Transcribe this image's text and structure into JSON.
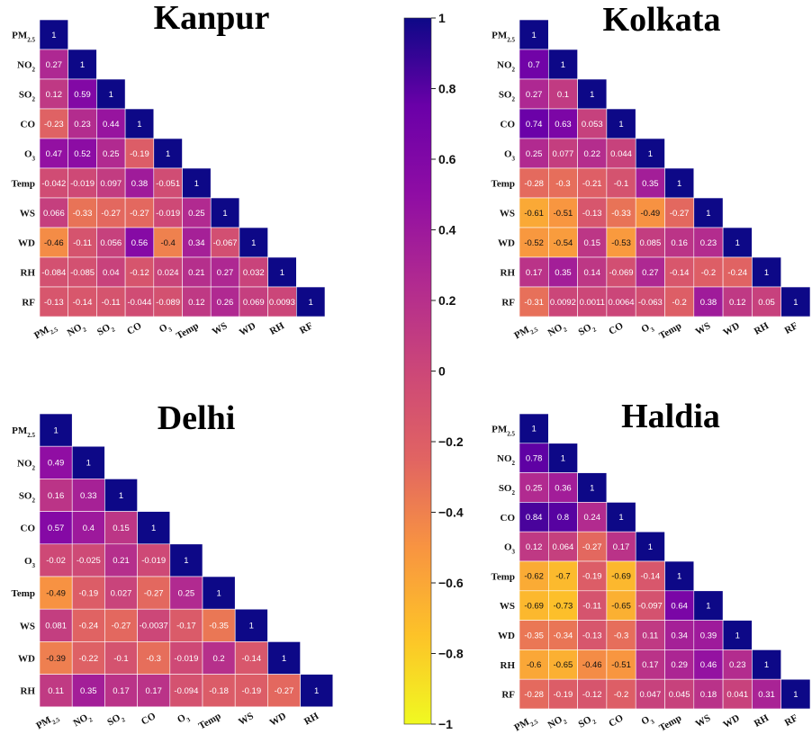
{
  "chart_data": {
    "colorbar": {
      "colormap": "plasma",
      "range": [
        -1,
        1
      ],
      "ticks": [
        "1",
        "0.8",
        "0.6",
        "0.4",
        "0.2",
        "0",
        "−0.2",
        "−0.4",
        "−0.6",
        "−0.8",
        "−1"
      ]
    },
    "panels": [
      {
        "type": "heatmap",
        "title": "Kanpur",
        "variables": [
          {
            "base": "PM",
            "sub": "2.5"
          },
          {
            "base": "NO",
            "sub": "2"
          },
          {
            "base": "SO",
            "sub": "2"
          },
          {
            "base": "CO",
            "sub": ""
          },
          {
            "base": "O",
            "sub": "3"
          },
          {
            "base": "Temp",
            "sub": ""
          },
          {
            "base": "WS",
            "sub": ""
          },
          {
            "base": "WD",
            "sub": ""
          },
          {
            "base": "RH",
            "sub": ""
          },
          {
            "base": "RF",
            "sub": ""
          }
        ],
        "rows": [
          [
            "1"
          ],
          [
            "0.27",
            "1"
          ],
          [
            "0.12",
            "0.59",
            "1"
          ],
          [
            "-0.23",
            "0.23",
            "0.44",
            "1"
          ],
          [
            "0.47",
            "0.52",
            "0.25",
            "-0.19",
            "1"
          ],
          [
            "-0.042",
            "-0.019",
            "0.097",
            "0.38",
            "-0.051",
            "1"
          ],
          [
            "0.066",
            "-0.33",
            "-0.27",
            "-0.27",
            "-0.019",
            "0.25",
            "1"
          ],
          [
            "-0.46",
            "-0.11",
            "0.056",
            "0.56",
            "-0.4",
            "0.34",
            "-0.067",
            "1"
          ],
          [
            "-0.084",
            "-0.085",
            "0.04",
            "-0.12",
            "0.024",
            "0.21",
            "0.27",
            "0.032",
            "1"
          ],
          [
            "-0.13",
            "-0.14",
            "-0.11",
            "-0.044",
            "-0.089",
            "0.12",
            "0.26",
            "0.069",
            "0.0093",
            "1"
          ]
        ]
      },
      {
        "type": "heatmap",
        "title": "Kolkata",
        "variables": [
          {
            "base": "PM",
            "sub": "2.5"
          },
          {
            "base": "NO",
            "sub": "2"
          },
          {
            "base": "SO",
            "sub": "2"
          },
          {
            "base": "CO",
            "sub": ""
          },
          {
            "base": "O",
            "sub": "3"
          },
          {
            "base": "Temp",
            "sub": ""
          },
          {
            "base": "WS",
            "sub": ""
          },
          {
            "base": "WD",
            "sub": ""
          },
          {
            "base": "RH",
            "sub": ""
          },
          {
            "base": "RF",
            "sub": ""
          }
        ],
        "rows": [
          [
            "1"
          ],
          [
            "0.7",
            "1"
          ],
          [
            "0.27",
            "0.1",
            "1"
          ],
          [
            "0.74",
            "0.63",
            "0.053",
            "1"
          ],
          [
            "0.25",
            "0.077",
            "0.22",
            "0.044",
            "1"
          ],
          [
            "-0.28",
            "-0.3",
            "-0.21",
            "-0.1",
            "0.35",
            "1"
          ],
          [
            "-0.61",
            "-0.51",
            "-0.13",
            "-0.33",
            "-0.49",
            "-0.27",
            "1"
          ],
          [
            "-0.52",
            "-0.54",
            "0.15",
            "-0.53",
            "0.085",
            "0.16",
            "0.23",
            "1"
          ],
          [
            "0.17",
            "0.35",
            "0.14",
            "-0.069",
            "0.27",
            "-0.14",
            "-0.2",
            "-0.24",
            "1"
          ],
          [
            "-0.31",
            "0.0092",
            "0.0011",
            "0.0064",
            "-0.063",
            "-0.2",
            "0.38",
            "0.12",
            "0.05",
            "1"
          ]
        ]
      },
      {
        "type": "heatmap",
        "title": "Delhi",
        "variables": [
          {
            "base": "PM",
            "sub": "2.5"
          },
          {
            "base": "NO",
            "sub": "2"
          },
          {
            "base": "SO",
            "sub": "2"
          },
          {
            "base": "CO",
            "sub": ""
          },
          {
            "base": "O",
            "sub": "3"
          },
          {
            "base": "Temp",
            "sub": ""
          },
          {
            "base": "WS",
            "sub": ""
          },
          {
            "base": "WD",
            "sub": ""
          },
          {
            "base": "RH",
            "sub": ""
          }
        ],
        "rows": [
          [
            "1"
          ],
          [
            "0.49",
            "1"
          ],
          [
            "0.16",
            "0.33",
            "1"
          ],
          [
            "0.57",
            "0.4",
            "0.15",
            "1"
          ],
          [
            "-0.02",
            "-0.025",
            "0.21",
            "-0.019",
            "1"
          ],
          [
            "-0.49",
            "-0.19",
            "0.027",
            "-0.27",
            "0.25",
            "1"
          ],
          [
            "0.081",
            "-0.24",
            "-0.27",
            "-0.0037",
            "-0.17",
            "-0.35",
            "1"
          ],
          [
            "-0.39",
            "-0.22",
            "-0.1",
            "-0.3",
            "-0.019",
            "0.2",
            "-0.14",
            "1"
          ],
          [
            "0.11",
            "0.35",
            "0.17",
            "0.17",
            "-0.094",
            "-0.18",
            "-0.19",
            "-0.27",
            "1"
          ]
        ]
      },
      {
        "type": "heatmap",
        "title": "Haldia",
        "variables": [
          {
            "base": "PM",
            "sub": "2.5"
          },
          {
            "base": "NO",
            "sub": "2"
          },
          {
            "base": "SO",
            "sub": "2"
          },
          {
            "base": "CO",
            "sub": ""
          },
          {
            "base": "O",
            "sub": "3"
          },
          {
            "base": "Temp",
            "sub": ""
          },
          {
            "base": "WS",
            "sub": ""
          },
          {
            "base": "WD",
            "sub": ""
          },
          {
            "base": "RH",
            "sub": ""
          },
          {
            "base": "RF",
            "sub": ""
          }
        ],
        "rows": [
          [
            "1"
          ],
          [
            "0.78",
            "1"
          ],
          [
            "0.25",
            "0.36",
            "1"
          ],
          [
            "0.84",
            "0.8",
            "0.24",
            "1"
          ],
          [
            "0.12",
            "0.064",
            "-0.27",
            "0.17",
            "1"
          ],
          [
            "-0.62",
            "-0.7",
            "-0.19",
            "-0.69",
            "-0.14",
            "1"
          ],
          [
            "-0.69",
            "-0.73",
            "-0.11",
            "-0.65",
            "-0.097",
            "0.64",
            "1"
          ],
          [
            "-0.35",
            "-0.34",
            "-0.13",
            "-0.3",
            "0.11",
            "0.34",
            "0.39",
            "1"
          ],
          [
            "-0.6",
            "-0.65",
            "-0.46",
            "-0.51",
            "0.17",
            "0.29",
            "0.46",
            "0.23",
            "1"
          ],
          [
            "-0.28",
            "-0.19",
            "-0.12",
            "-0.2",
            "0.047",
            "0.045",
            "0.18",
            "0.041",
            "0.31",
            "1"
          ]
        ]
      }
    ]
  }
}
